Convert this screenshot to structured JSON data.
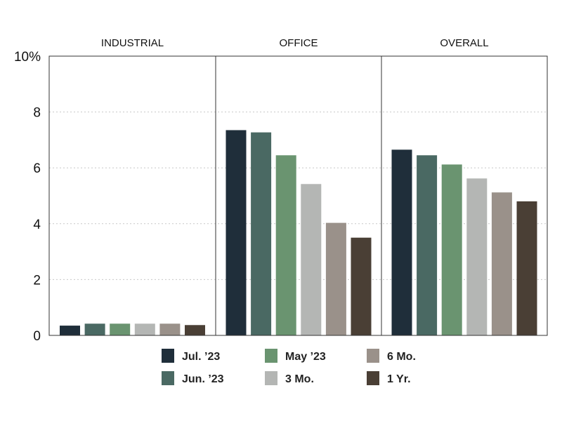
{
  "chart_data": {
    "type": "bar",
    "panels": [
      "INDUSTRIAL",
      "OFFICE",
      "OVERALL"
    ],
    "series": [
      {
        "name": "Jul. ’23",
        "color": "#1f2e3a",
        "values": [
          0.35,
          7.35,
          6.65
        ]
      },
      {
        "name": "Jun. ’23",
        "color": "#4a6963",
        "values": [
          0.42,
          7.27,
          6.45
        ]
      },
      {
        "name": "May ’23",
        "color": "#6a9470",
        "values": [
          0.42,
          6.45,
          6.12
        ]
      },
      {
        "name": "3 Mo.",
        "color": "#b4b6b4",
        "values": [
          0.42,
          5.42,
          5.62
        ]
      },
      {
        "name": "6 Mo.",
        "color": "#9a918a",
        "values": [
          0.42,
          4.03,
          5.12
        ]
      },
      {
        "name": "1 Yr.",
        "color": "#4a3f35",
        "values": [
          0.37,
          3.5,
          4.8
        ]
      }
    ],
    "yticks": [
      "0",
      "2",
      "4",
      "6",
      "8",
      "10%"
    ],
    "ytick_values": [
      0,
      2,
      4,
      6,
      8,
      10
    ],
    "ylim": [
      0,
      10
    ],
    "grid": true,
    "legend_position": "bottom"
  }
}
